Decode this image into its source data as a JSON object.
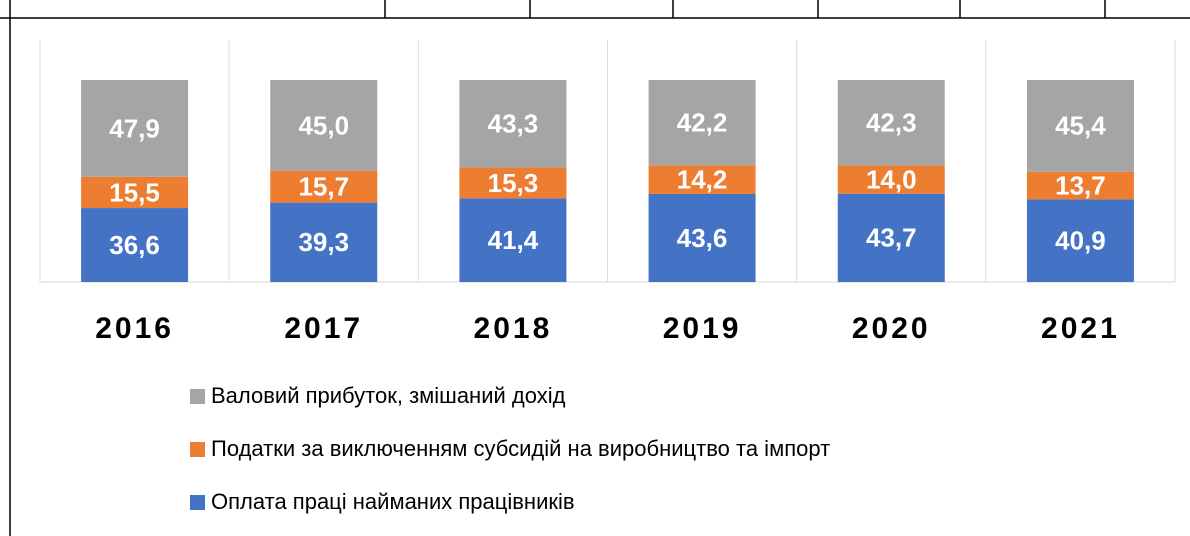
{
  "chart_data": {
    "type": "stacked_bar",
    "categories": [
      "2016",
      "2017",
      "2018",
      "2019",
      "2020",
      "2021"
    ],
    "series": [
      {
        "name": "Оплата праці найманих працівників",
        "color": "#4472c4",
        "values": [
          36.6,
          39.3,
          41.4,
          43.6,
          43.7,
          40.9
        ],
        "value_labels": [
          "36,6",
          "39,3",
          "41,4",
          "43,6",
          "43,7",
          "40,9"
        ]
      },
      {
        "name": "Податки за виключенням субсидій на виробництво та імпорт",
        "color": "#ed7d31",
        "values": [
          15.5,
          15.7,
          15.3,
          14.2,
          14.0,
          13.7
        ],
        "value_labels": [
          "15,5",
          "15,7",
          "15,3",
          "14,2",
          "14,0",
          "13,7"
        ]
      },
      {
        "name": "Валовий прибуток, змішаний дохід",
        "color": "#a5a5a5",
        "values": [
          47.9,
          45.0,
          43.3,
          42.2,
          42.3,
          45.4
        ],
        "value_labels": [
          "47,9",
          "45,0",
          "43,3",
          "42,2",
          "42,3",
          "45,4"
        ]
      }
    ],
    "ylim": [
      0,
      100
    ],
    "grid": true
  }
}
